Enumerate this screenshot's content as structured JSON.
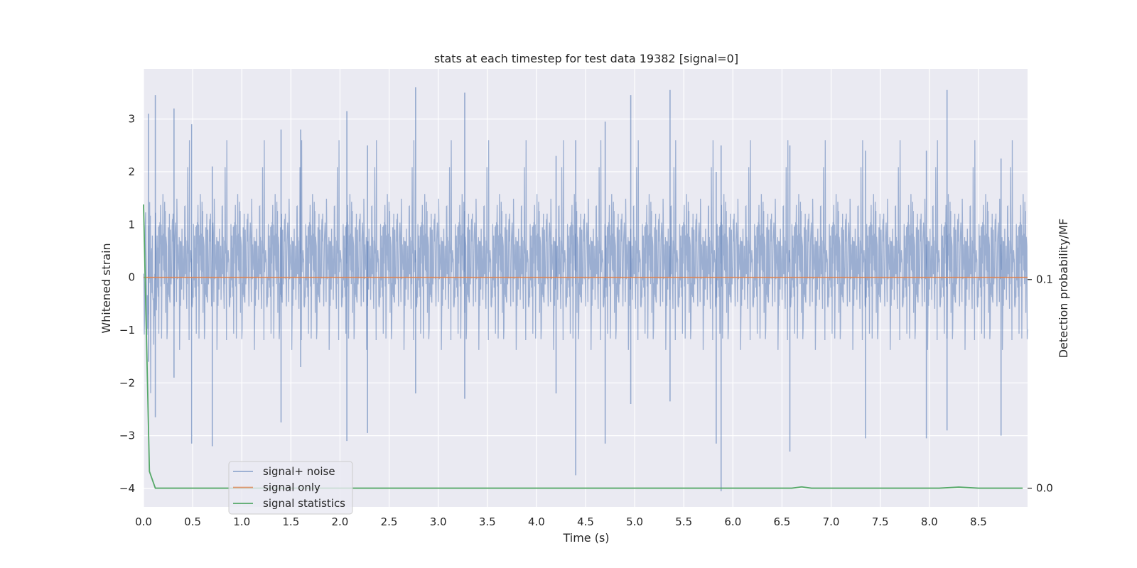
{
  "chart_data": {
    "type": "line",
    "title": "stats at each timestep for test data 19382 [signal=0]",
    "xlabel": "Time (s)",
    "ylabel": "Whitened strain",
    "ylabel_right": "Detection probability/MF",
    "xlim": [
      0.0,
      9.0
    ],
    "ylim": [
      -4.35,
      3.95
    ],
    "ylim_right": [
      -0.009,
      0.201
    ],
    "x_ticks": [
      "0.0",
      "0.5",
      "1.0",
      "1.5",
      "2.0",
      "2.5",
      "3.0",
      "3.5",
      "4.0",
      "4.5",
      "5.0",
      "5.5",
      "6.0",
      "6.5",
      "7.0",
      "7.5",
      "8.0",
      "8.5"
    ],
    "y_ticks": [
      "3",
      "2",
      "1",
      "0",
      "−1",
      "−2",
      "−3",
      "−4"
    ],
    "y_ticks_right": [
      "0.1",
      "0.0"
    ],
    "grid": true,
    "legend_position": "lower-left",
    "colors": {
      "plot_bg": "#eaeaf2",
      "grid": "#ffffff",
      "noise": "#4c72b0",
      "signal_only": "#dd8452",
      "stats": "#55a868"
    },
    "series": [
      {
        "name": "signal+ noise",
        "axis": "left",
        "style": "dense-noise",
        "envelope_points": [
          {
            "x": 0.05,
            "max": 3.1,
            "min": -1.6
          },
          {
            "x": 0.12,
            "max": 3.45,
            "min": -2.65
          },
          {
            "x": 0.31,
            "max": 3.2,
            "min": -1.9
          },
          {
            "x": 0.49,
            "max": 2.9,
            "min": -3.15
          },
          {
            "x": 0.7,
            "max": 2.1,
            "min": -3.2
          },
          {
            "x": 1.4,
            "max": 2.8,
            "min": -2.75
          },
          {
            "x": 1.6,
            "max": 2.8,
            "min": -1.7
          },
          {
            "x": 2.07,
            "max": 3.15,
            "min": -3.1
          },
          {
            "x": 2.28,
            "max": 2.5,
            "min": -2.95
          },
          {
            "x": 2.77,
            "max": 3.6,
            "min": -2.2
          },
          {
            "x": 3.27,
            "max": 3.5,
            "min": -2.3
          },
          {
            "x": 4.2,
            "max": 2.3,
            "min": -2.2
          },
          {
            "x": 4.4,
            "max": 2.6,
            "min": -3.75
          },
          {
            "x": 4.7,
            "max": 2.95,
            "min": -3.15
          },
          {
            "x": 4.96,
            "max": 3.45,
            "min": -2.4
          },
          {
            "x": 5.36,
            "max": 3.55,
            "min": -2.35
          },
          {
            "x": 5.83,
            "max": 2.0,
            "min": -3.15
          },
          {
            "x": 5.88,
            "max": 2.5,
            "min": -4.05
          },
          {
            "x": 6.58,
            "max": 2.5,
            "min": -3.3
          },
          {
            "x": 7.35,
            "max": 2.4,
            "min": -3.05
          },
          {
            "x": 7.97,
            "max": 2.4,
            "min": -3.05
          },
          {
            "x": 8.18,
            "max": 3.55,
            "min": -2.9
          },
          {
            "x": 8.73,
            "max": 2.25,
            "min": -3.0
          }
        ]
      },
      {
        "name": "signal only",
        "axis": "left",
        "x": [
          0.0,
          9.0
        ],
        "y": [
          0.0,
          0.0
        ]
      },
      {
        "name": "signal statistics",
        "axis": "right",
        "x": [
          0.0,
          0.06,
          0.12,
          0.5,
          1.0,
          2.0,
          3.0,
          4.0,
          5.0,
          5.9,
          6.1,
          6.2,
          6.6,
          6.7,
          6.8,
          7.5,
          8.1,
          8.3,
          8.5,
          8.95
        ],
        "y": [
          0.136,
          0.008,
          0.0,
          0.0,
          0.0,
          0.0,
          0.0,
          0.0,
          0.0,
          0.0,
          0.0,
          0.0,
          0.0,
          0.0006,
          0.0,
          0.0,
          0.0,
          0.0005,
          0.0,
          0.0
        ]
      }
    ]
  }
}
